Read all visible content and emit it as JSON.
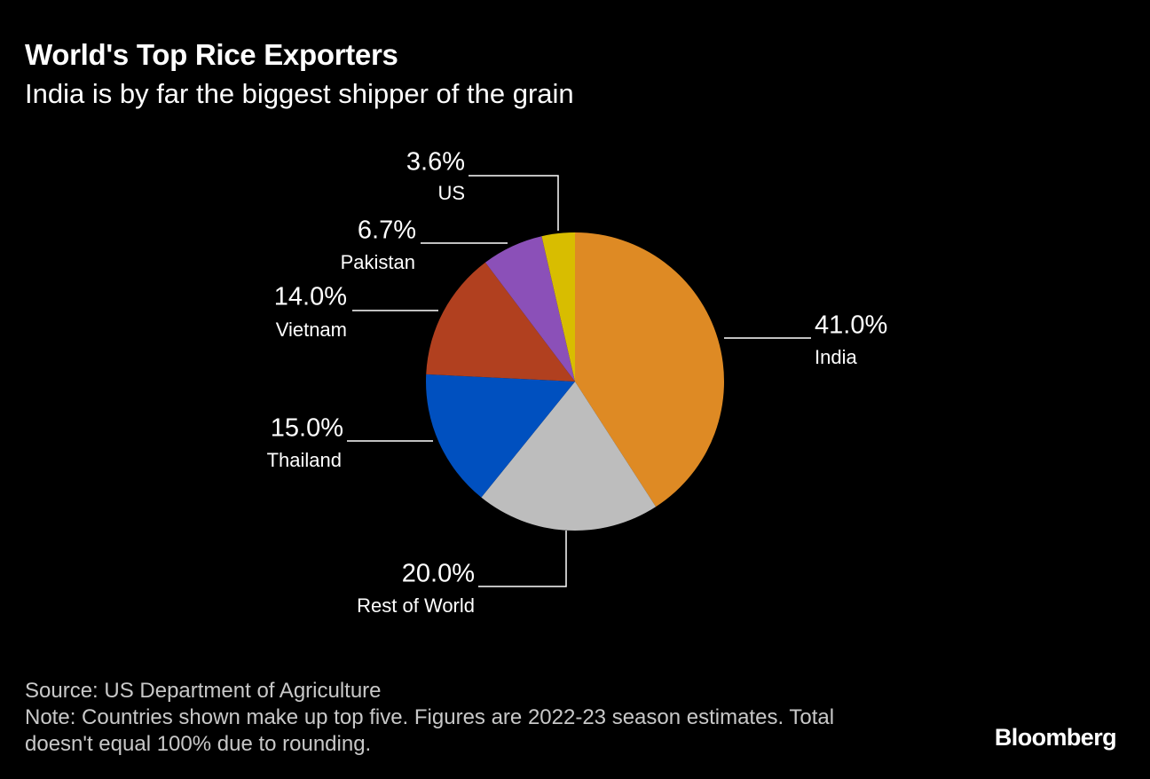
{
  "title": "World's Top Rice Exporters",
  "subtitle": "India is by far the biggest shipper of the grain",
  "source": "Source: US Department of Agriculture",
  "note_line1": "Note: Countries shown make up top five. Figures are 2022-23 season estimates. Total",
  "note_line2": "doesn't equal 100% due to rounding.",
  "brand": "Bloomberg",
  "chart_data": {
    "type": "pie",
    "title": "World's Top Rice Exporters",
    "subtitle": "India is by far the biggest shipper of the grain",
    "start_angle_deg": 0,
    "direction": "clockwise",
    "slices": [
      {
        "name": "India",
        "value": 41.0,
        "label": "41.0%",
        "color": "#de8a24",
        "label_side": "right"
      },
      {
        "name": "Rest of World",
        "value": 20.0,
        "label": "20.0%",
        "color": "#bdbdbd",
        "label_side": "bottom"
      },
      {
        "name": "Thailand",
        "value": 15.0,
        "label": "15.0%",
        "color": "#0050bf",
        "label_side": "left"
      },
      {
        "name": "Vietnam",
        "value": 14.0,
        "label": "14.0%",
        "color": "#b1401f",
        "label_side": "left"
      },
      {
        "name": "Pakistan",
        "value": 6.7,
        "label": "6.7%",
        "color": "#8b50b8",
        "label_side": "left"
      },
      {
        "name": "US",
        "value": 3.6,
        "label": "3.6%",
        "color": "#d8bd00",
        "label_side": "top"
      }
    ]
  }
}
